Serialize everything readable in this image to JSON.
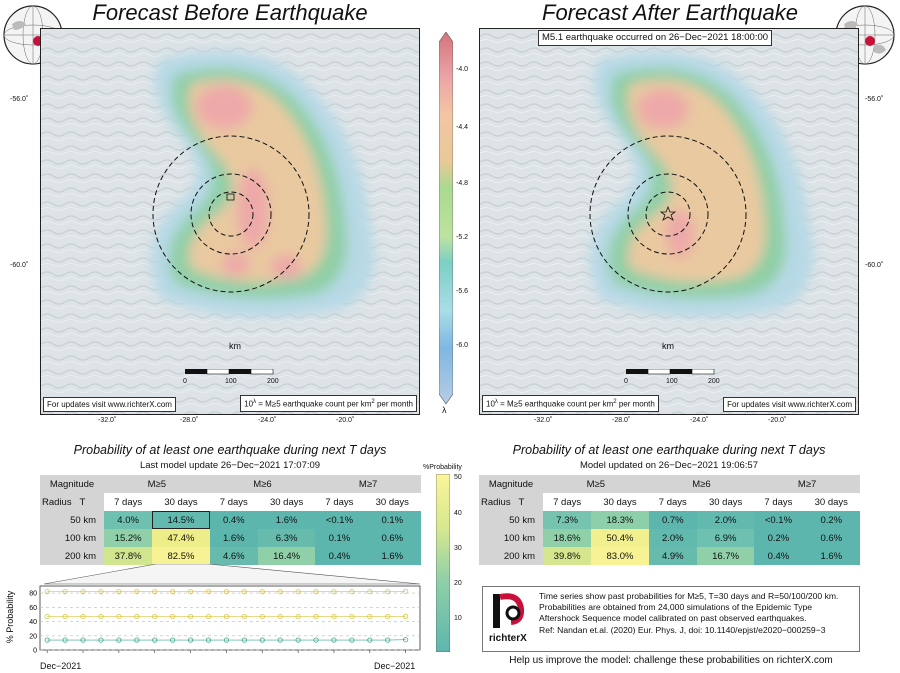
{
  "left_map": {
    "title": "Forecast Before Earthquake",
    "footer_left": "For updates visit www.richterX.com",
    "footer_right_prefix": "10",
    "footer_right_exp": "λ",
    "footer_right_mid": " = M≥5 earthquake count per km",
    "footer_right_sup": "2",
    "footer_right_suffix": " per month",
    "lat_labels": [
      "-56.0˚",
      "-60.0˚"
    ],
    "lon_labels": [
      "-28.0˚",
      "-24.0˚"
    ],
    "scalebar": {
      "unit": "km",
      "ticks": [
        "0",
        "100",
        "200"
      ]
    }
  },
  "right_map": {
    "title": "Forecast After Earthquake",
    "event_label": "M5.1 earthquake occurred on 26−Dec−2021 18:00:00",
    "footer_left_prefix": "10",
    "footer_left_exp": "λ",
    "footer_left_mid": " = M≥5 earthquake count per km",
    "footer_left_sup": "2",
    "footer_left_suffix": " per month",
    "footer_right": "For updates visit www.richterX.com",
    "lat_labels": [
      "-56.0˚",
      "-60.0˚"
    ],
    "lon_labels": [
      "-32.0˚",
      "-28.0˚",
      "-24.0˚",
      "-20.0˚"
    ],
    "scalebar": {
      "unit": "km",
      "ticks": [
        "0",
        "100",
        "200"
      ]
    }
  },
  "shared_axes": {
    "left_lon_extra": [
      "-32.0˚",
      "-20.0˚"
    ]
  },
  "colorbar": {
    "ticks": [
      "-4.0",
      "-4.4",
      "-4.8",
      "-5.2",
      "-5.6",
      "-6.0"
    ],
    "label": "λ"
  },
  "left_table": {
    "title": "Probability of at least one earthquake during next T days",
    "updated": "Last model update 26−Dec−2021 17:07:09",
    "magnitude_label": "Magnitude",
    "radius_label": "Radius",
    "t_label": "T",
    "magnitudes": [
      "M≥5",
      "M≥6",
      "M≥7"
    ],
    "periods": [
      "7 days",
      "30 days",
      "7 days",
      "30 days",
      "7 days",
      "30 days"
    ],
    "rows": [
      {
        "radius": "50 km",
        "values": [
          "4.0%",
          "14.5%",
          "0.4%",
          "1.6%",
          "<0.1%",
          "0.1%"
        ]
      },
      {
        "radius": "100 km",
        "values": [
          "15.2%",
          "47.4%",
          "1.6%",
          "6.3%",
          "0.1%",
          "0.6%"
        ]
      },
      {
        "radius": "200 km",
        "values": [
          "37.8%",
          "82.5%",
          "4.6%",
          "16.4%",
          "0.4%",
          "1.6%"
        ]
      }
    ],
    "colors": [
      [
        "#6ec0b0",
        "#62b9ae",
        "#5db6ad",
        "#5db6ad",
        "#5db6ad",
        "#5db6ad"
      ],
      [
        "#8fd0a8",
        "#eded8a",
        "#5db6ad",
        "#66bbad",
        "#5db6ad",
        "#5db6ad"
      ],
      [
        "#d1e48e",
        "#f7f294",
        "#66bbad",
        "#8fd0a8",
        "#5db6ad",
        "#5db6ad"
      ]
    ]
  },
  "right_table": {
    "title": "Probability of at least one earthquake during next T days",
    "updated": "Model updated on 26−Dec−2021 19:06:57",
    "magnitude_label": "Magnitude",
    "radius_label": "Radius",
    "t_label": "T",
    "magnitudes": [
      "M≥5",
      "M≥6",
      "M≥7"
    ],
    "periods": [
      "7 days",
      "30 days",
      "7 days",
      "30 days",
      "7 days",
      "30 days"
    ],
    "rows": [
      {
        "radius": "50 km",
        "values": [
          "7.3%",
          "18.3%",
          "0.7%",
          "2.0%",
          "<0.1%",
          "0.2%"
        ]
      },
      {
        "radius": "100 km",
        "values": [
          "18.6%",
          "50.4%",
          "2.0%",
          "6.9%",
          "0.2%",
          "0.6%"
        ]
      },
      {
        "radius": "200 km",
        "values": [
          "39.8%",
          "83.0%",
          "4.9%",
          "16.7%",
          "0.4%",
          "1.6%"
        ]
      }
    ],
    "colors": [
      [
        "#76c4b0",
        "#8ccfa8",
        "#5db6ad",
        "#62b9ae",
        "#5db6ad",
        "#5db6ad"
      ],
      [
        "#8fd0a8",
        "#f2f08e",
        "#62b9ae",
        "#6ec0b0",
        "#5db6ad",
        "#5db6ad"
      ],
      [
        "#d6e68f",
        "#f7f294",
        "#66bbad",
        "#8fd0a8",
        "#5db6ad",
        "#5db6ad"
      ]
    ]
  },
  "prob_colorbar": {
    "label": "%Probability",
    "ticks": [
      "50",
      "40",
      "30",
      "20",
      "10"
    ]
  },
  "info": {
    "logo_text": "richterX",
    "lines": [
      "Time series show past probabilities for M≥5, T=30 days and R=50/100/200 km.",
      "Probabilities are obtained from 24,000 simulations of the Epidemic Type",
      "Aftershock Sequence model calibrated on past observed earthquakes.",
      "Ref: Nandan et.al. (2020) Eur. Phys. J, doi: 10.1140/epjst/e2020−000259−3"
    ],
    "help": "Help us improve the model: challenge these probabilities on richterX.com"
  },
  "chart_data": {
    "type": "line",
    "ylabel": "% Probability",
    "yticks": [
      0,
      20,
      40,
      60,
      80
    ],
    "ylim": [
      0,
      90
    ],
    "x_ticks": [
      "16",
      "17",
      "18",
      "19",
      "20",
      "21",
      "22",
      "23",
      "24",
      "25",
      "26"
    ],
    "x_start_label": "Dec−2021",
    "x_end_label": "Dec−2021",
    "x": [
      16,
      16.5,
      17,
      17.5,
      18,
      18.5,
      19,
      19.5,
      20,
      20.5,
      21,
      21.5,
      22,
      22.5,
      23,
      23.5,
      24,
      24.5,
      25,
      25.5,
      26
    ],
    "series": [
      {
        "color": "#d8c43c",
        "values": [
          82,
          82,
          82,
          82,
          82,
          82,
          82,
          82,
          82,
          82,
          82,
          82,
          82,
          82,
          82,
          82,
          82,
          82,
          82,
          82,
          82.5
        ]
      },
      {
        "color": "#d8c43c",
        "values": [
          47,
          47,
          47,
          47,
          47,
          47,
          47,
          47,
          47,
          47,
          47,
          47,
          47,
          47,
          47,
          47,
          47,
          47,
          47,
          47,
          47.4
        ]
      },
      {
        "color": "#3aa68c",
        "values": [
          14,
          14,
          14,
          14,
          14,
          14,
          14,
          14,
          14,
          14,
          14,
          14,
          14,
          14,
          14,
          14,
          14,
          14,
          14,
          14,
          14.5
        ]
      }
    ]
  }
}
